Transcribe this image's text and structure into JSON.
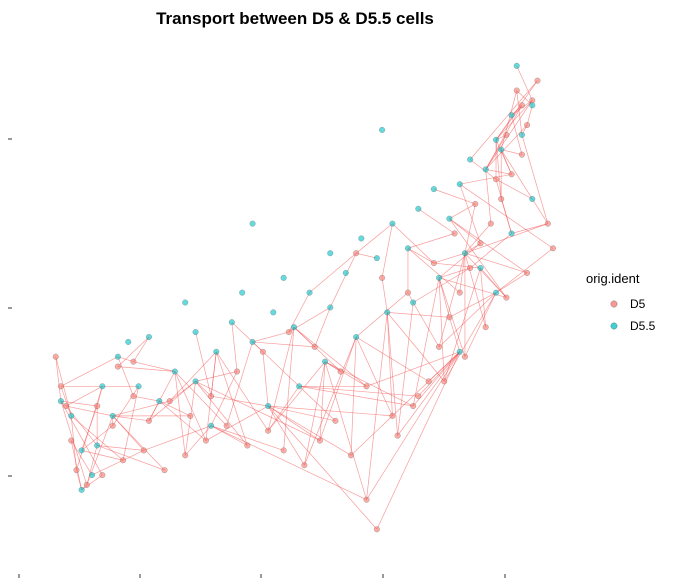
{
  "chart_data": {
    "type": "scatter",
    "title": "Transport between D5 & D5.5 cells",
    "xlabel": "",
    "ylabel": "",
    "grid": false,
    "axis_ticks_labeled": false,
    "legend": {
      "title": "orig.ident",
      "placement": "right",
      "entries": [
        {
          "name": "D5",
          "color": "#F8766D"
        },
        {
          "name": "D5.5",
          "color": "#00BFC4"
        }
      ]
    },
    "transport_line_color": "#F24A4A",
    "point_alpha": 0.6,
    "note_points": "approximate sample of plotted cells in plot-relative units (0-1 on both axes)",
    "series": [
      {
        "name": "D5",
        "color": "#F8766D",
        "points": [
          [
            0.04,
            0.39
          ],
          [
            0.05,
            0.33
          ],
          [
            0.06,
            0.29
          ],
          [
            0.07,
            0.22
          ],
          [
            0.08,
            0.16
          ],
          [
            0.1,
            0.13
          ],
          [
            0.13,
            0.15
          ],
          [
            0.17,
            0.18
          ],
          [
            0.21,
            0.2
          ],
          [
            0.25,
            0.16
          ],
          [
            0.29,
            0.19
          ],
          [
            0.33,
            0.22
          ],
          [
            0.37,
            0.25
          ],
          [
            0.41,
            0.21
          ],
          [
            0.45,
            0.24
          ],
          [
            0.48,
            0.2
          ],
          [
            0.52,
            0.17
          ],
          [
            0.55,
            0.22
          ],
          [
            0.58,
            0.26
          ],
          [
            0.61,
            0.19
          ],
          [
            0.64,
            0.1
          ],
          [
            0.66,
            0.04
          ],
          [
            0.7,
            0.23
          ],
          [
            0.73,
            0.29
          ],
          [
            0.76,
            0.34
          ],
          [
            0.78,
            0.41
          ],
          [
            0.8,
            0.47
          ],
          [
            0.82,
            0.52
          ],
          [
            0.84,
            0.57
          ],
          [
            0.86,
            0.62
          ],
          [
            0.88,
            0.66
          ],
          [
            0.9,
            0.71
          ],
          [
            0.92,
            0.76
          ],
          [
            0.94,
            0.8
          ],
          [
            0.95,
            0.86
          ],
          [
            0.96,
            0.91
          ],
          [
            0.97,
            0.95
          ],
          [
            0.93,
            0.93
          ],
          [
            0.99,
            0.66
          ],
          [
            1.0,
            0.61
          ],
          [
            0.95,
            0.56
          ],
          [
            0.91,
            0.51
          ],
          [
            0.87,
            0.45
          ],
          [
            0.83,
            0.39
          ],
          [
            0.79,
            0.34
          ],
          [
            0.74,
            0.31
          ],
          [
            0.69,
            0.27
          ],
          [
            0.64,
            0.33
          ],
          [
            0.59,
            0.36
          ],
          [
            0.54,
            0.41
          ],
          [
            0.49,
            0.44
          ],
          [
            0.44,
            0.4
          ],
          [
            0.39,
            0.36
          ],
          [
            0.34,
            0.31
          ],
          [
            0.3,
            0.27
          ],
          [
            0.26,
            0.3
          ],
          [
            0.22,
            0.26
          ],
          [
            0.19,
            0.31
          ],
          [
            0.15,
            0.25
          ],
          [
            0.12,
            0.29
          ],
          [
            0.16,
            0.37
          ],
          [
            0.19,
            0.38
          ],
          [
            0.62,
            0.6
          ],
          [
            0.67,
            0.55
          ],
          [
            0.72,
            0.52
          ],
          [
            0.77,
            0.58
          ],
          [
            0.81,
            0.64
          ],
          [
            0.85,
            0.7
          ],
          [
            0.89,
            0.75
          ],
          [
            0.91,
            0.84
          ],
          [
            0.94,
            0.9
          ]
        ]
      },
      {
        "name": "D5.5",
        "color": "#00BFC4",
        "points": [
          [
            0.05,
            0.3
          ],
          [
            0.07,
            0.27
          ],
          [
            0.09,
            0.2
          ],
          [
            0.11,
            0.15
          ],
          [
            0.09,
            0.12
          ],
          [
            0.12,
            0.21
          ],
          [
            0.15,
            0.27
          ],
          [
            0.16,
            0.39
          ],
          [
            0.2,
            0.33
          ],
          [
            0.24,
            0.3
          ],
          [
            0.27,
            0.36
          ],
          [
            0.31,
            0.34
          ],
          [
            0.35,
            0.4
          ],
          [
            0.38,
            0.46
          ],
          [
            0.42,
            0.42
          ],
          [
            0.46,
            0.48
          ],
          [
            0.5,
            0.45
          ],
          [
            0.53,
            0.52
          ],
          [
            0.57,
            0.49
          ],
          [
            0.6,
            0.56
          ],
          [
            0.63,
            0.63
          ],
          [
            0.66,
            0.59
          ],
          [
            0.69,
            0.66
          ],
          [
            0.72,
            0.61
          ],
          [
            0.74,
            0.69
          ],
          [
            0.77,
            0.73
          ],
          [
            0.8,
            0.67
          ],
          [
            0.82,
            0.74
          ],
          [
            0.84,
            0.79
          ],
          [
            0.87,
            0.77
          ],
          [
            0.89,
            0.83
          ],
          [
            0.9,
            0.81
          ],
          [
            0.92,
            0.88
          ],
          [
            0.94,
            0.84
          ],
          [
            0.96,
            0.9
          ],
          [
            0.93,
            0.98
          ],
          [
            0.67,
            0.85
          ],
          [
            0.42,
            0.66
          ],
          [
            0.29,
            0.5
          ],
          [
            0.34,
            0.25
          ],
          [
            0.45,
            0.29
          ],
          [
            0.51,
            0.33
          ],
          [
            0.56,
            0.38
          ],
          [
            0.62,
            0.43
          ],
          [
            0.68,
            0.48
          ],
          [
            0.73,
            0.5
          ],
          [
            0.78,
            0.55
          ],
          [
            0.83,
            0.6
          ],
          [
            0.86,
            0.57
          ],
          [
            0.92,
            0.64
          ],
          [
            0.96,
            0.71
          ],
          [
            0.89,
            0.52
          ],
          [
            0.82,
            0.4
          ],
          [
            0.57,
            0.6
          ],
          [
            0.48,
            0.55
          ],
          [
            0.4,
            0.52
          ],
          [
            0.31,
            0.44
          ],
          [
            0.22,
            0.43
          ],
          [
            0.13,
            0.33
          ],
          [
            0.18,
            0.42
          ]
        ]
      }
    ]
  }
}
